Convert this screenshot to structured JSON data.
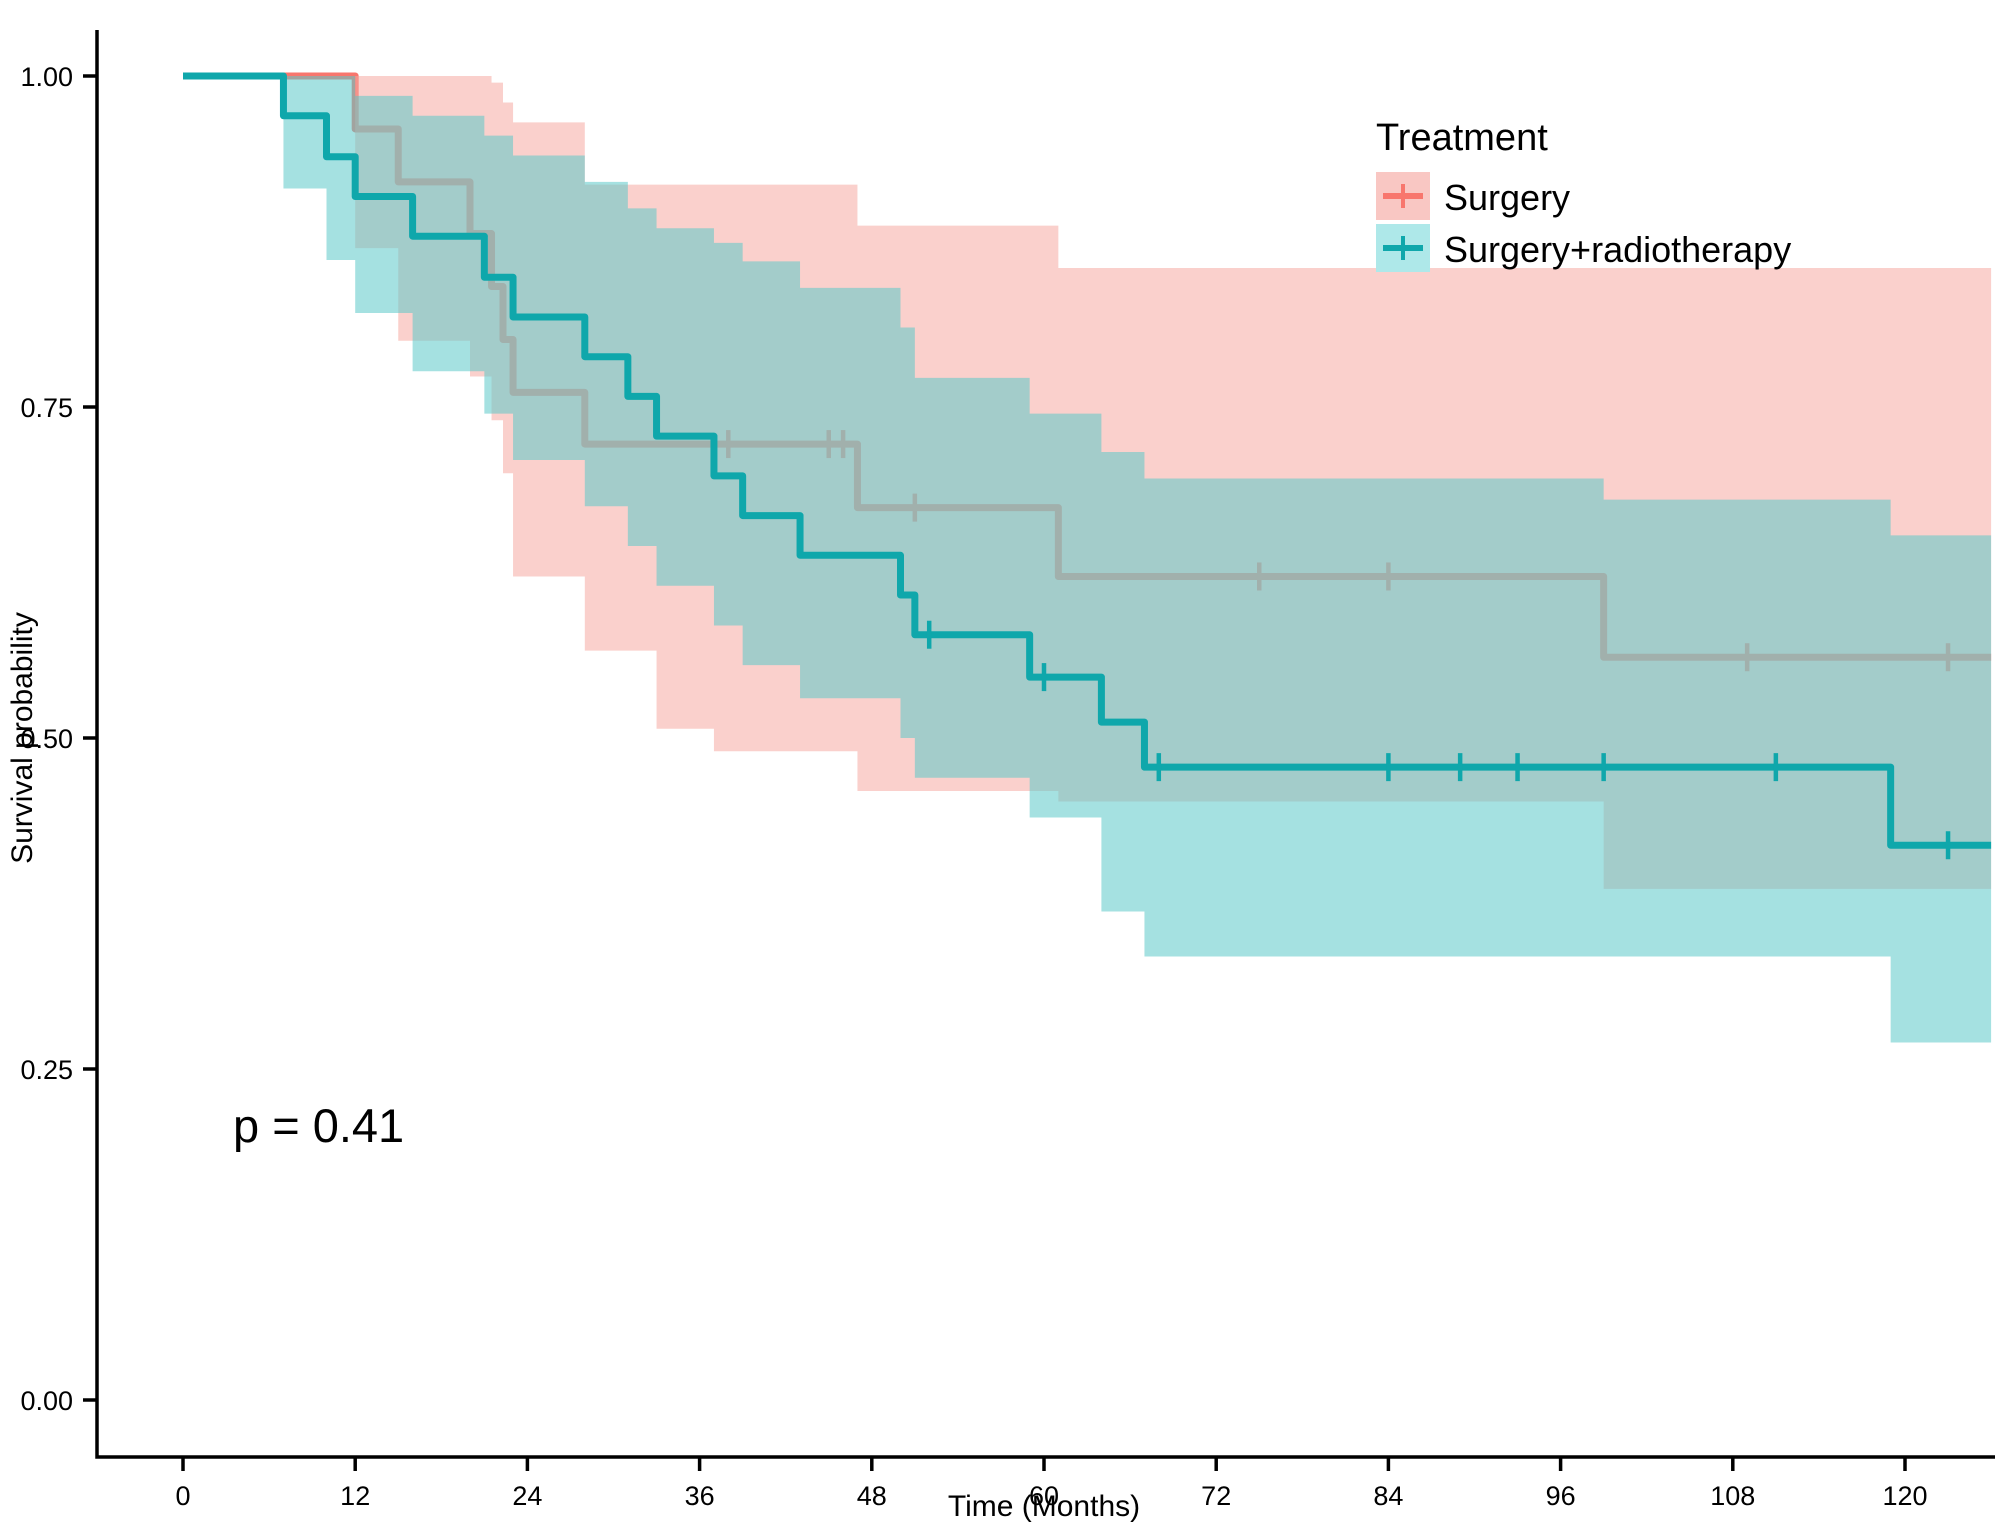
{
  "chart_data": {
    "type": "line",
    "subtype": "kaplan-meier-survival",
    "title": "",
    "xlabel": "Time (Months)",
    "ylabel": "Survival probability",
    "p_value_text": "p = 0.41",
    "x_ticks": [
      0,
      12,
      24,
      36,
      48,
      60,
      72,
      84,
      96,
      108,
      120
    ],
    "y_ticks": [
      {
        "v": 0.0,
        "label": "0.00"
      },
      {
        "v": 0.25,
        "label": "0.25"
      },
      {
        "v": 0.5,
        "label": "0.50"
      },
      {
        "v": 0.75,
        "label": "0.75"
      },
      {
        "v": 1.0,
        "label": "1.00"
      }
    ],
    "xlim": [
      0,
      126
    ],
    "ylim": [
      0,
      1.0
    ],
    "plot_end_month": 126,
    "grid": false,
    "legend": {
      "title": "Treatment",
      "position": "top-right",
      "entries": [
        {
          "label": "Surgery",
          "line_color": "#F8766D",
          "swatch_fill": "#F9C7C3"
        },
        {
          "label": "Surgery+radiotherapy",
          "line_color": "#0FA7AB",
          "swatch_fill": "#AEE8E9"
        }
      ]
    },
    "series": [
      {
        "name": "Surgery",
        "line_color": "#F8766D",
        "band_fill": "#F5A9A3",
        "band_opacity": 0.55,
        "steps": [
          [
            0,
            1.0
          ],
          [
            12,
            0.96
          ],
          [
            15,
            0.92
          ],
          [
            20,
            0.881
          ],
          [
            21.5,
            0.841
          ],
          [
            22.3,
            0.801
          ],
          [
            23,
            0.761
          ],
          [
            28,
            0.722
          ],
          [
            47,
            0.674
          ],
          [
            61,
            0.622
          ],
          [
            99,
            0.561
          ]
        ],
        "censor_marks": [
          [
            38,
            0.722
          ],
          [
            45,
            0.722
          ],
          [
            46,
            0.722
          ],
          [
            51,
            0.674
          ],
          [
            75,
            0.622
          ],
          [
            84,
            0.622
          ],
          [
            109,
            0.561
          ],
          [
            123,
            0.561
          ]
        ],
        "ci_band": [
          [
            12,
            0.87,
            1.0
          ],
          [
            15,
            0.8,
            1.0
          ],
          [
            20,
            0.773,
            1.0
          ],
          [
            21.5,
            0.74,
            0.995
          ],
          [
            22.3,
            0.7,
            0.98
          ],
          [
            23,
            0.622,
            0.965
          ],
          [
            28,
            0.566,
            0.918
          ],
          [
            33,
            0.507,
            0.918
          ],
          [
            37,
            0.49,
            0.918
          ],
          [
            47,
            0.46,
            0.887
          ],
          [
            61,
            0.452,
            0.855
          ],
          [
            99,
            0.386,
            0.855
          ]
        ]
      },
      {
        "name": "Surgery+radiotherapy",
        "line_color": "#0FA7AB",
        "band_fill": "#5BC8C8",
        "band_opacity": 0.55,
        "steps": [
          [
            0,
            1.0
          ],
          [
            7,
            0.97
          ],
          [
            10,
            0.939
          ],
          [
            12,
            0.909
          ],
          [
            16,
            0.879
          ],
          [
            21,
            0.848
          ],
          [
            23,
            0.818
          ],
          [
            28,
            0.788
          ],
          [
            31,
            0.758
          ],
          [
            33,
            0.728
          ],
          [
            37,
            0.698
          ],
          [
            39,
            0.668
          ],
          [
            43,
            0.638
          ],
          [
            50,
            0.608
          ],
          [
            51,
            0.578
          ],
          [
            59,
            0.546
          ],
          [
            64,
            0.512
          ],
          [
            67,
            0.478
          ],
          [
            119,
            0.419
          ]
        ],
        "censor_marks": [
          [
            52,
            0.578
          ],
          [
            60,
            0.546
          ],
          [
            68,
            0.478
          ],
          [
            84,
            0.478
          ],
          [
            89,
            0.478
          ],
          [
            93,
            0.478
          ],
          [
            99,
            0.478
          ],
          [
            111,
            0.478
          ],
          [
            123,
            0.419
          ]
        ],
        "ci_band": [
          [
            7,
            0.915,
            1.0
          ],
          [
            10,
            0.861,
            1.0
          ],
          [
            12,
            0.821,
            0.985
          ],
          [
            16,
            0.777,
            0.97
          ],
          [
            21,
            0.745,
            0.955
          ],
          [
            23,
            0.71,
            0.94
          ],
          [
            28,
            0.675,
            0.92
          ],
          [
            31,
            0.645,
            0.9
          ],
          [
            33,
            0.615,
            0.885
          ],
          [
            37,
            0.585,
            0.874
          ],
          [
            39,
            0.555,
            0.86
          ],
          [
            43,
            0.53,
            0.84
          ],
          [
            50,
            0.5,
            0.81
          ],
          [
            51,
            0.47,
            0.772
          ],
          [
            59,
            0.44,
            0.745
          ],
          [
            64,
            0.369,
            0.716
          ],
          [
            67,
            0.335,
            0.696
          ],
          [
            99,
            0.335,
            0.68
          ],
          [
            119,
            0.27,
            0.653
          ]
        ]
      }
    ],
    "axis_color": "#000000"
  }
}
